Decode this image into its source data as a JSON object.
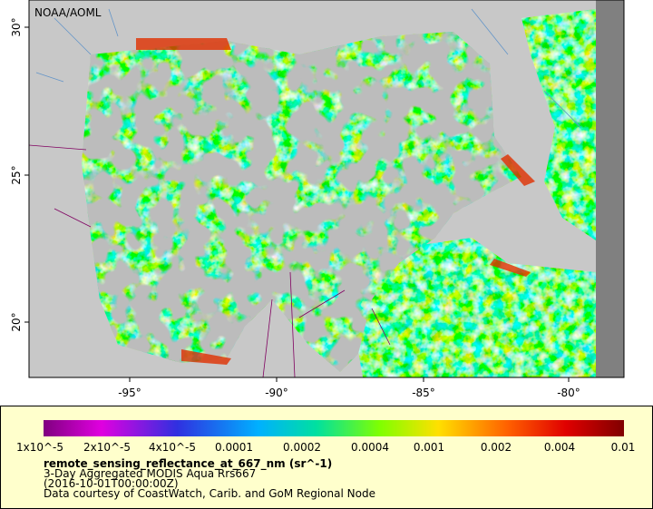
{
  "map": {
    "credit": "NOAA/AOML",
    "lat_labels": [
      "30°",
      "25°",
      "20°"
    ],
    "lon_labels": [
      "-95°",
      "-90°",
      "-85°",
      "-80°"
    ]
  },
  "legend": {
    "colorbar_labels": [
      "1x10^-5",
      "2x10^-5",
      "4x10^-5",
      "0.0001",
      "0.0002",
      "0.0004",
      "0.001",
      "0.002",
      "0.004",
      "0.01"
    ],
    "title": "remote_sensing_reflectance_at_667_nm (sr^-1)",
    "lines": [
      "3-Day Aggregated MODIS Aqua Rrs667",
      "(2016-10-01T00:00:00Z)",
      "Data courtesy of CoastWatch, Carib. and GoM Regional Node"
    ]
  }
}
